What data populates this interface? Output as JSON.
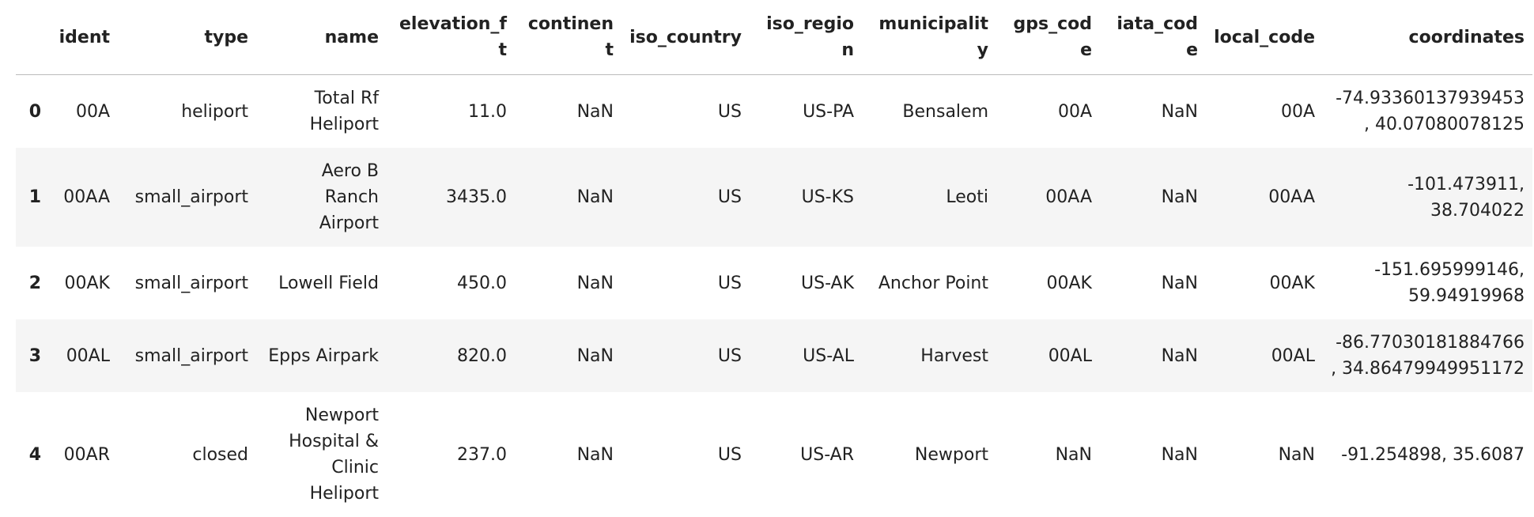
{
  "table": {
    "columns": [
      "",
      "ident",
      "type",
      "name",
      "elevation_ft",
      "continent",
      "iso_country",
      "iso_region",
      "municipality",
      "gps_code",
      "iata_code",
      "local_code",
      "coordinates"
    ],
    "rows": [
      [
        "0",
        "00A",
        "heliport",
        "Total Rf Heliport",
        "11.0",
        "NaN",
        "US",
        "US-PA",
        "Bensalem",
        "00A",
        "NaN",
        "00A",
        "-74.93360137939453, 40.07080078125"
      ],
      [
        "1",
        "00AA",
        "small_airport",
        "Aero B Ranch Airport",
        "3435.0",
        "NaN",
        "US",
        "US-KS",
        "Leoti",
        "00AA",
        "NaN",
        "00AA",
        "-101.473911, 38.704022"
      ],
      [
        "2",
        "00AK",
        "small_airport",
        "Lowell Field",
        "450.0",
        "NaN",
        "US",
        "US-AK",
        "Anchor Point",
        "00AK",
        "NaN",
        "00AK",
        "-151.695999146, 59.94919968"
      ],
      [
        "3",
        "00AL",
        "small_airport",
        "Epps Airpark",
        "820.0",
        "NaN",
        "US",
        "US-AL",
        "Harvest",
        "00AL",
        "NaN",
        "00AL",
        "-86.77030181884766, 34.86479949951172"
      ],
      [
        "4",
        "00AR",
        "closed",
        "Newport Hospital & Clinic Heliport",
        "237.0",
        "NaN",
        "US",
        "US-AR",
        "Newport",
        "NaN",
        "NaN",
        "NaN",
        "-91.254898, 35.6087"
      ]
    ]
  }
}
